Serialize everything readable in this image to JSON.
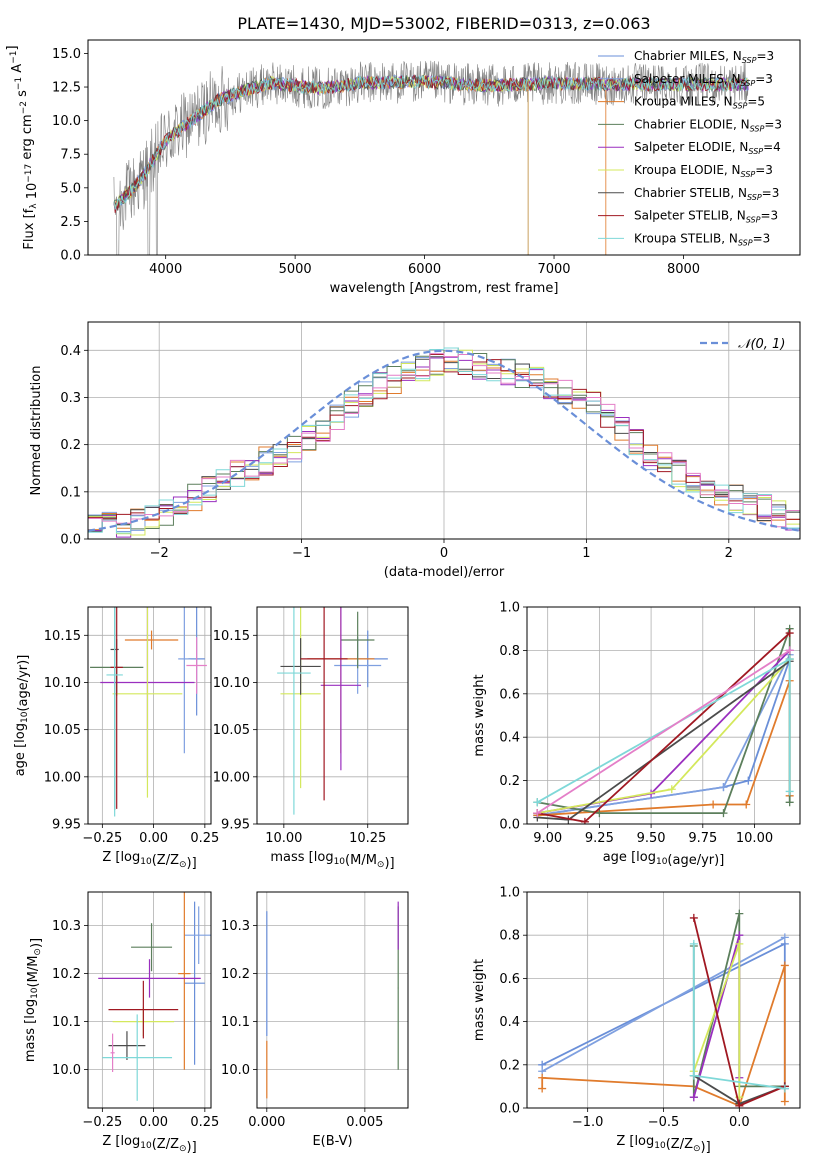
{
  "figure_title": "PLATE=1430, MJD=53002, FIBERID=0313, z=0.063",
  "colors": {
    "spectrum": "#808080",
    "gauss": "#6a8fd8",
    "grid": "#b0b0b0",
    "models": [
      "#6a8fd8",
      "#7fa0e0",
      "#e07b2c",
      "#5c7f5c",
      "#9a2fbf",
      "#d4e85c",
      "#4c4c4c",
      "#a01822",
      "#7fd8d8",
      "#e47fc8"
    ]
  },
  "chart_data": [
    {
      "type": "line",
      "title": "PLATE=1430, MJD=53002, FIBERID=0313, z=0.063",
      "xlabel": "wavelength [Angstrom, rest frame]",
      "ylabel": "Flux [f_λ 10^-17 erg cm^-2 s^-1 A^-1]",
      "xlim": [
        3400,
        8900
      ],
      "ylim": [
        0,
        16
      ],
      "xticks": [
        4000,
        5000,
        6000,
        7000,
        8000
      ],
      "yticks": [
        0.0,
        2.5,
        5.0,
        7.5,
        10.0,
        12.5,
        15.0
      ],
      "legend_position": "right",
      "legend": [
        {
          "base": "Chabrier MILES",
          "n": "3",
          "color": "#6a8fd8"
        },
        {
          "base": "Salpeter MILES",
          "n": "3",
          "color": "#7fa0e0"
        },
        {
          "base": "Kroupa MILES",
          "n": "5",
          "color": "#e07b2c"
        },
        {
          "base": "Chabrier ELODIE",
          "n": "3",
          "color": "#5c7f5c"
        },
        {
          "base": "Salpeter ELODIE",
          "n": "4",
          "color": "#9a2fbf"
        },
        {
          "base": "Kroupa ELODIE",
          "n": "3",
          "color": "#d4e85c"
        },
        {
          "base": "Chabrier STELIB",
          "n": "3",
          "color": "#4c4c4c"
        },
        {
          "base": "Salpeter STELIB",
          "n": "3",
          "color": "#a01822"
        },
        {
          "base": "Kroupa STELIB",
          "n": "3",
          "color": "#7fd8d8"
        }
      ],
      "continuum": {
        "x": [
          3600,
          3800,
          4000,
          4200,
          4400,
          4600,
          4800,
          5000,
          5200,
          5500,
          6000,
          6500,
          7000,
          7400
        ],
        "y": [
          3.5,
          5.5,
          8.5,
          10.0,
          11.5,
          12.2,
          12.8,
          12.6,
          12.4,
          12.8,
          12.9,
          12.6,
          12.8,
          12.7
        ]
      },
      "model_extent": {
        "Kroupa MILES": [
          3600,
          7400
        ],
        "default": [
          3600,
          8500
        ]
      }
    },
    {
      "type": "line",
      "subtype": "step-histogram",
      "xlabel": "(data-model)/error",
      "ylabel": "Normed distribution",
      "xlim": [
        -2.5,
        2.5
      ],
      "ylim": [
        0,
        0.46
      ],
      "xticks": [
        -2,
        -1,
        0,
        1,
        2
      ],
      "yticks": [
        0.0,
        0.1,
        0.2,
        0.3,
        0.4
      ],
      "legend_position": "top-right",
      "legend": [
        "𝒩(0, 1)"
      ],
      "bins": {
        "start": -2.5,
        "width": 0.1,
        "count": 50
      },
      "series_envelope": {
        "x": [
          -2.45,
          -2.0,
          -1.5,
          -1.0,
          -0.5,
          0.0,
          0.5,
          1.0,
          1.5,
          2.0,
          2.45
        ],
        "y": [
          0.025,
          0.045,
          0.13,
          0.2,
          0.32,
          0.38,
          0.35,
          0.3,
          0.16,
          0.09,
          0.045
        ]
      },
      "reference_curve": "standard normal pdf"
    },
    {
      "type": "scatter",
      "subtype": "errorbar",
      "xlabel": "Z [log10(Z/Z☉)]",
      "ylabel": "age  [log10(age/yr)]",
      "xlim": [
        -0.32,
        0.28
      ],
      "ylim": [
        9.95,
        10.18
      ],
      "xticks": [
        -0.25,
        0.0,
        0.25
      ],
      "yticks": [
        9.95,
        10.0,
        10.05,
        10.1,
        10.15
      ],
      "points": [
        {
          "x": 0.21,
          "y": 10.125,
          "xerr": 0.04,
          "yerr": 0.06
        },
        {
          "x": 0.15,
          "y": 10.125,
          "xerr": 0.03,
          "yerr": 0.1
        },
        {
          "x": -0.01,
          "y": 10.145,
          "xerr": 0.13,
          "yerr": 0.01
        },
        {
          "x": -0.18,
          "y": 10.116,
          "xerr": 0.13,
          "yerr": 0.03
        },
        {
          "x": -0.03,
          "y": 10.1,
          "xerr": 0.23,
          "yerr": 0.1
        },
        {
          "x": -0.03,
          "y": 10.088,
          "xerr": 0.17,
          "yerr": 0.11
        },
        {
          "x": -0.19,
          "y": 10.135,
          "xerr": 0.02,
          "yerr": 0.17
        },
        {
          "x": -0.18,
          "y": 10.116,
          "xerr": 0.03,
          "yerr": 0.15
        },
        {
          "x": -0.19,
          "y": 10.108,
          "xerr": 0.04,
          "yerr": 0.15
        },
        {
          "x": 0.21,
          "y": 10.118,
          "xerr": 0.05,
          "yerr": 0.03
        }
      ]
    },
    {
      "type": "scatter",
      "subtype": "errorbar",
      "xlabel": "mass [log10(M/M☉)]",
      "ylabel": "",
      "xlim": [
        9.92,
        10.37
      ],
      "ylim": [
        9.95,
        10.18
      ],
      "xticks": [
        10.0,
        10.25
      ],
      "yticks": [
        9.95,
        10.0,
        10.05,
        10.1,
        10.15
      ],
      "points": [
        {
          "x": 10.25,
          "y": 10.125,
          "xerr": 0.06,
          "yerr": 0.03
        },
        {
          "x": 10.22,
          "y": 10.118,
          "xerr": 0.07,
          "yerr": 0.03
        },
        {
          "x": 10.17,
          "y": 10.125,
          "xerr": 0.1,
          "yerr": 0.1
        },
        {
          "x": 10.22,
          "y": 10.145,
          "xerr": 0.05,
          "yerr": 0.03
        },
        {
          "x": 10.17,
          "y": 10.097,
          "xerr": 0.06,
          "yerr": 0.09
        },
        {
          "x": 10.05,
          "y": 10.088,
          "xerr": 0.06,
          "yerr": 0.1
        },
        {
          "x": 10.05,
          "y": 10.117,
          "xerr": 0.06,
          "yerr": 0.03
        },
        {
          "x": 10.12,
          "y": 10.125,
          "xerr": 0.07,
          "yerr": 0.15
        },
        {
          "x": 10.03,
          "y": 10.11,
          "xerr": 0.05,
          "yerr": 0.15
        }
      ]
    },
    {
      "type": "line",
      "xlabel": "age  [log10(age/yr)]",
      "ylabel": "mass weight",
      "xlim": [
        8.9,
        10.22
      ],
      "ylim": [
        0,
        1
      ],
      "xticks": [
        9.0,
        9.25,
        9.5,
        9.75,
        10.0
      ],
      "yticks": [
        0.0,
        0.2,
        0.4,
        0.6,
        0.8,
        1.0
      ],
      "series": [
        {
          "x": [
            8.95,
            9.85,
            9.97,
            10.17
          ],
          "y": [
            0.04,
            0.17,
            0.2,
            0.76
          ]
        },
        {
          "x": [
            8.95,
            9.85,
            10.17
          ],
          "y": [
            0.04,
            0.17,
            0.78
          ]
        },
        {
          "x": [
            8.95,
            9.8,
            9.96,
            10.17,
            10.17
          ],
          "y": [
            0.04,
            0.09,
            0.09,
            0.66,
            0.13
          ]
        },
        {
          "x": [
            8.95,
            9.25,
            9.85,
            10.17,
            10.17
          ],
          "y": [
            0.1,
            0.05,
            0.05,
            0.9,
            0.1
          ]
        },
        {
          "x": [
            8.95,
            9.5,
            10.17
          ],
          "y": [
            0.05,
            0.14,
            0.8
          ]
        },
        {
          "x": [
            8.95,
            9.6,
            10.17
          ],
          "y": [
            0.05,
            0.16,
            0.76
          ]
        },
        {
          "x": [
            8.95,
            9.1,
            10.17
          ],
          "y": [
            0.03,
            0.02,
            0.75
          ]
        },
        {
          "x": [
            8.95,
            9.18,
            10.17
          ],
          "y": [
            0.05,
            0.01,
            0.88
          ]
        },
        {
          "x": [
            8.95,
            10.17,
            10.17
          ],
          "y": [
            0.1,
            0.76,
            0.15
          ]
        },
        {
          "x": [
            8.95,
            10.17
          ],
          "y": [
            0.05,
            0.8
          ]
        }
      ]
    },
    {
      "type": "scatter",
      "subtype": "errorbar",
      "xlabel": "Z [log10(Z/Z☉)]",
      "ylabel": "mass [log10(M/M☉)]",
      "xlim": [
        -0.32,
        0.28
      ],
      "ylim": [
        9.92,
        10.37
      ],
      "xticks": [
        -0.25,
        0.0,
        0.25
      ],
      "yticks": [
        10.0,
        10.1,
        10.2,
        10.3
      ],
      "points": [
        {
          "x": 0.2,
          "y": 10.18,
          "xerr": 0.05,
          "yerr": 0.17
        },
        {
          "x": 0.22,
          "y": 10.28,
          "xerr": 0.07,
          "yerr": 0.06
        },
        {
          "x": 0.15,
          "y": 10.2,
          "xerr": 0.03,
          "yerr": 0.2
        },
        {
          "x": -0.01,
          "y": 10.255,
          "xerr": 0.1,
          "yerr": 0.05
        },
        {
          "x": -0.02,
          "y": 10.19,
          "xerr": 0.25,
          "yerr": 0.04
        },
        {
          "x": -0.05,
          "y": 10.1,
          "xerr": 0.15,
          "yerr": 0.03
        },
        {
          "x": -0.13,
          "y": 10.05,
          "xerr": 0.09,
          "yerr": 0.03
        },
        {
          "x": -0.05,
          "y": 10.125,
          "xerr": 0.17,
          "yerr": 0.06
        },
        {
          "x": -0.08,
          "y": 10.025,
          "xerr": 0.17,
          "yerr": 0.09
        },
        {
          "x": -0.2,
          "y": 10.035,
          "xerr": 0.01,
          "yerr": 0.04
        }
      ]
    },
    {
      "type": "scatter",
      "subtype": "errorbar",
      "xlabel": "E(B-V)",
      "ylabel": "",
      "xlim": [
        -0.0005,
        0.0072
      ],
      "ylim": [
        9.92,
        10.37
      ],
      "xticks": [
        0.0,
        0.005
      ],
      "yticks": [
        10.0,
        10.1,
        10.2,
        10.3
      ],
      "points": [
        {
          "x": 0.0,
          "y": 10.2,
          "xerr": 2e-05,
          "yerr": 0.13
        },
        {
          "x": 0.0,
          "y": 10.15,
          "xerr": 2e-05,
          "yerr": 0.08
        },
        {
          "x": 0.0,
          "y": 10.0,
          "xerr": 2e-05,
          "yerr": 0.06
        },
        {
          "x": 0.0067,
          "y": 10.17,
          "xerr": 2e-05,
          "yerr": 0.17
        },
        {
          "x": 0.0067,
          "y": 10.3,
          "xerr": 2e-05,
          "yerr": 0.05
        }
      ]
    },
    {
      "type": "line",
      "xlabel": "Z [log10(Z/Z☉)]",
      "ylabel": "mass weight",
      "xlim": [
        -1.4,
        0.4
      ],
      "ylim": [
        0,
        1
      ],
      "xticks": [
        -1.0,
        -0.5,
        0.0
      ],
      "yticks": [
        0.0,
        0.2,
        0.4,
        0.6,
        0.8,
        1.0
      ],
      "series": [
        {
          "x": [
            -1.3,
            0.3,
            0.3
          ],
          "y": [
            0.2,
            0.76,
            0.09
          ]
        },
        {
          "x": [
            -1.3,
            0.3
          ],
          "y": [
            0.17,
            0.79
          ]
        },
        {
          "x": [
            -1.3,
            -1.3,
            -0.3,
            0.0,
            0.3,
            0.3
          ],
          "y": [
            0.09,
            0.14,
            0.1,
            0.01,
            0.66,
            0.03
          ]
        },
        {
          "x": [
            -0.3,
            -0.3,
            0.0,
            0.0,
            0.3
          ],
          "y": [
            0.75,
            0.05,
            0.9,
            0.1,
            0.1
          ]
        },
        {
          "x": [
            -0.3,
            0.0,
            0.0
          ],
          "y": [
            0.05,
            0.8,
            0.14
          ]
        },
        {
          "x": [
            -0.3,
            0.0,
            0.0
          ],
          "y": [
            0.17,
            0.76,
            0.05
          ]
        },
        {
          "x": [
            -0.3,
            0.0,
            0.3
          ],
          "y": [
            0.15,
            0.02,
            0.1
          ]
        },
        {
          "x": [
            -0.3,
            0.0,
            0.3
          ],
          "y": [
            0.88,
            0.01,
            0.1
          ]
        },
        {
          "x": [
            -0.3,
            -0.3,
            0.3
          ],
          "y": [
            0.76,
            0.15,
            0.09
          ]
        }
      ]
    }
  ]
}
